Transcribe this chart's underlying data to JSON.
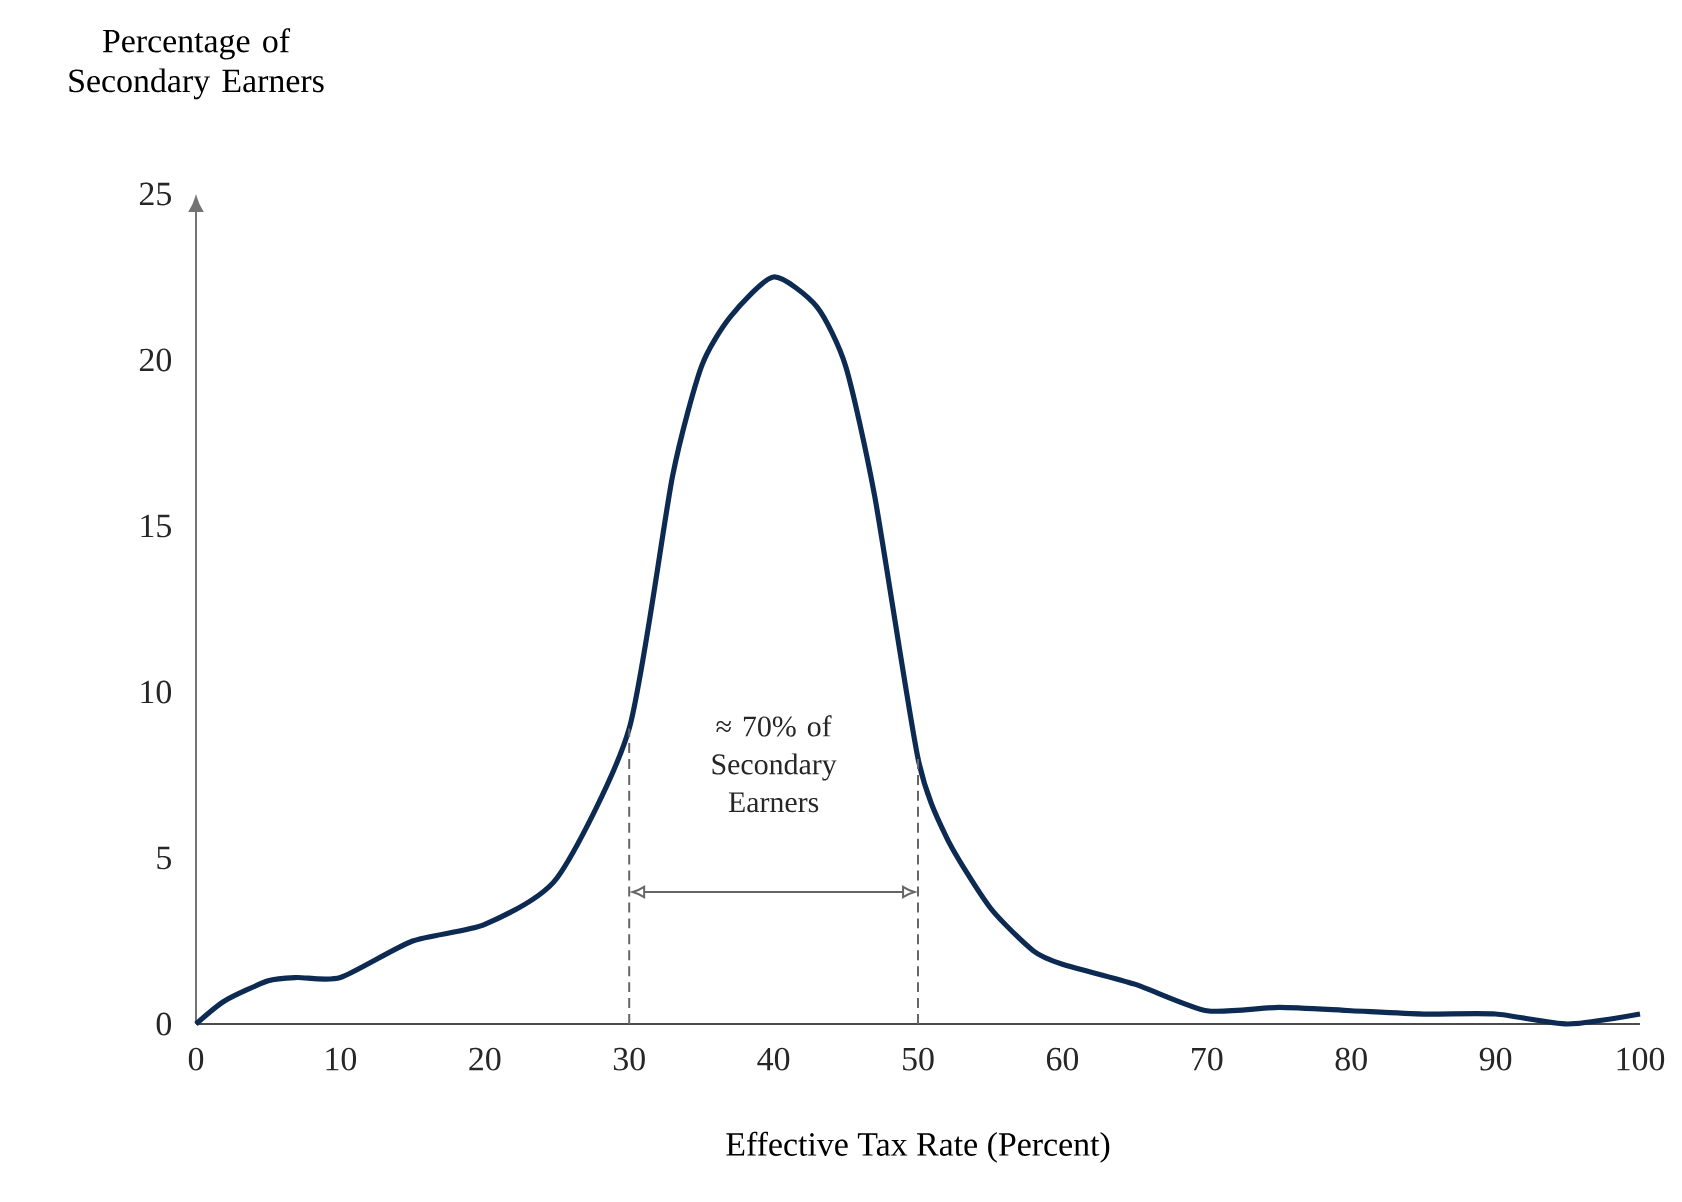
{
  "chart_data": {
    "type": "line",
    "xlabel": "Effective Tax Rate (Percent)",
    "ylabel": "Percentage of Secondary Earners",
    "x": [
      0,
      2,
      5,
      7,
      10,
      15,
      20,
      25,
      30,
      33,
      35,
      37,
      40,
      43,
      45,
      47,
      50,
      52,
      55,
      58,
      60,
      65,
      70,
      75,
      80,
      85,
      90,
      95,
      100
    ],
    "series": [
      {
        "color": "#0d2b52",
        "values": [
          0,
          0.7,
          1.3,
          1.4,
          1.4,
          2.5,
          3.0,
          4.4,
          8.9,
          16.5,
          19.8,
          21.3,
          22.5,
          21.6,
          19.8,
          15.9,
          8.0,
          5.6,
          3.5,
          2.2,
          1.8,
          1.2,
          0.4,
          0.5,
          0.4,
          0.3,
          0.3,
          0,
          0.3
        ]
      }
    ],
    "xlim": [
      0,
      100
    ],
    "ylim": [
      0,
      25
    ],
    "xticks": [
      0,
      10,
      20,
      30,
      40,
      50,
      60,
      70,
      80,
      90,
      100
    ],
    "yticks": [
      0,
      5,
      10,
      15,
      20,
      25
    ],
    "grid": false,
    "marker": "none",
    "line_style": "solid",
    "ref_lines": [
      {
        "axis": "x",
        "value": 30,
        "color": "#666666",
        "line_style": "dashed"
      },
      {
        "axis": "x",
        "value": 50,
        "color": "#666666",
        "line_style": "dashed"
      }
    ],
    "annotations": [
      "≈ 70% of Secondary Earners"
    ]
  }
}
